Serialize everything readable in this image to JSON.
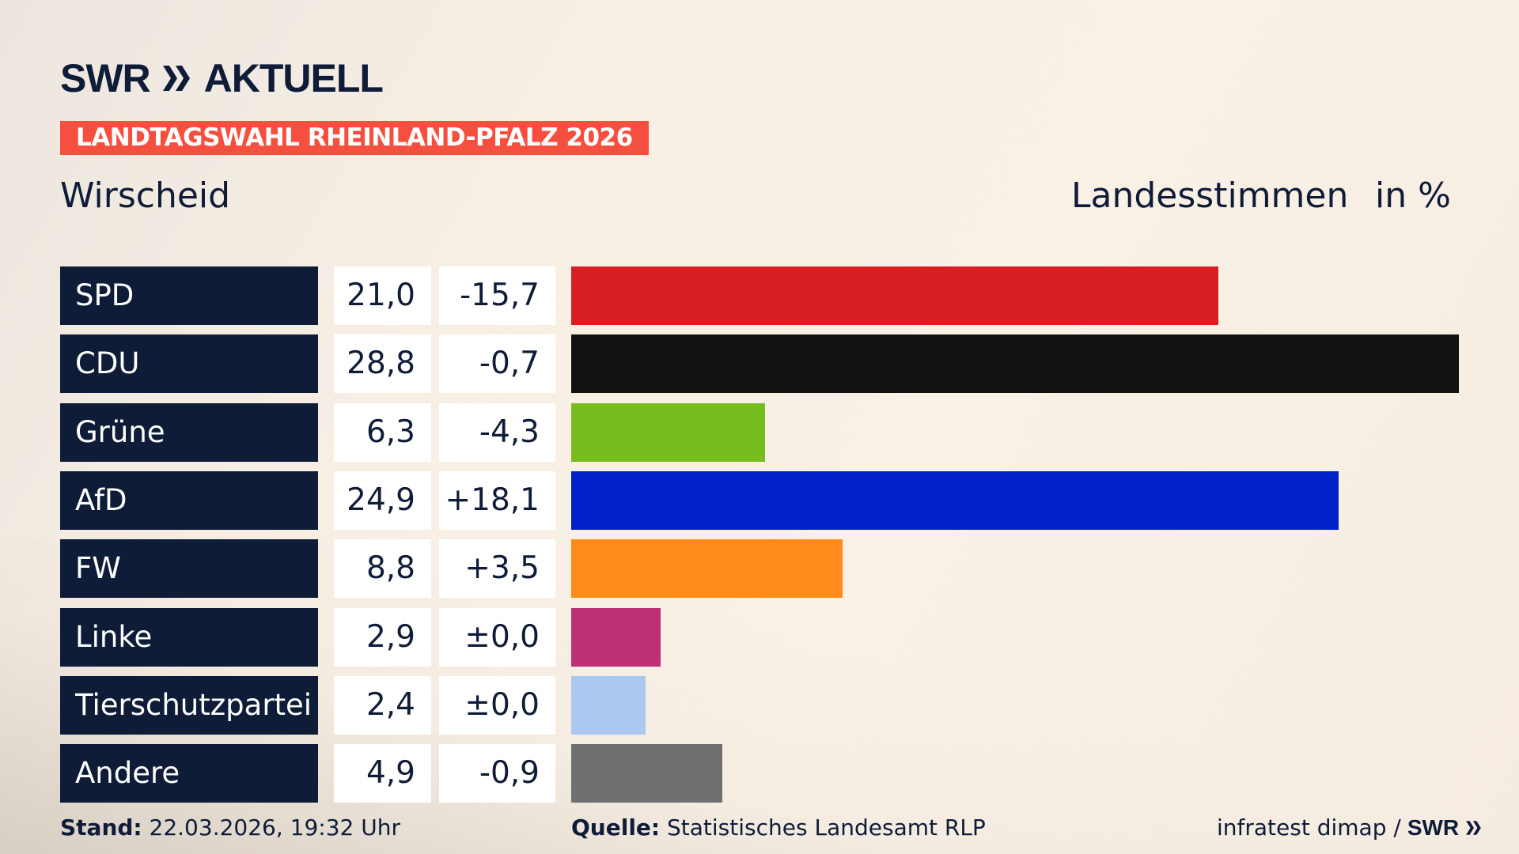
{
  "brand": {
    "logo_text": "SWR",
    "logo_suffix": "AKTUELL"
  },
  "badge": "LANDTAGSWAHL RHEINLAND-PFALZ 2026",
  "place": "Wirscheid",
  "header": {
    "measure": "Landesstimmen",
    "unit": "in %"
  },
  "chart_data": {
    "type": "bar",
    "orientation": "horizontal",
    "categories": [
      "SPD",
      "CDU",
      "Grüne",
      "AfD",
      "FW",
      "Linke",
      "Tierschutzpartei",
      "Andere"
    ],
    "values": [
      21.0,
      28.8,
      6.3,
      24.9,
      8.8,
      2.9,
      2.4,
      4.9
    ],
    "value_labels": [
      "21,0",
      "28,8",
      "6,3",
      "24,9",
      "8,8",
      "2,9",
      "2,4",
      "4,9"
    ],
    "change_labels": [
      "-15,7",
      "-0,7",
      "-4,3",
      "+18,1",
      "+3,5",
      "±0,0",
      "±0,0",
      "-0,9"
    ],
    "colors": [
      "#d71f21",
      "#121212",
      "#78bd1e",
      "#0021c8",
      "#ff8b1a",
      "#bd2f76",
      "#aac8f0",
      "#6f7072"
    ],
    "xlim": [
      0,
      28.8
    ]
  },
  "footer": {
    "stand_label": "Stand:",
    "stand_value": "22.03.2026, 19:32 Uhr",
    "source_label": "Quelle:",
    "source_value": "Statistisches Landesamt RLP",
    "credit": "infratest dimap /",
    "credit_logo": "SWR"
  }
}
